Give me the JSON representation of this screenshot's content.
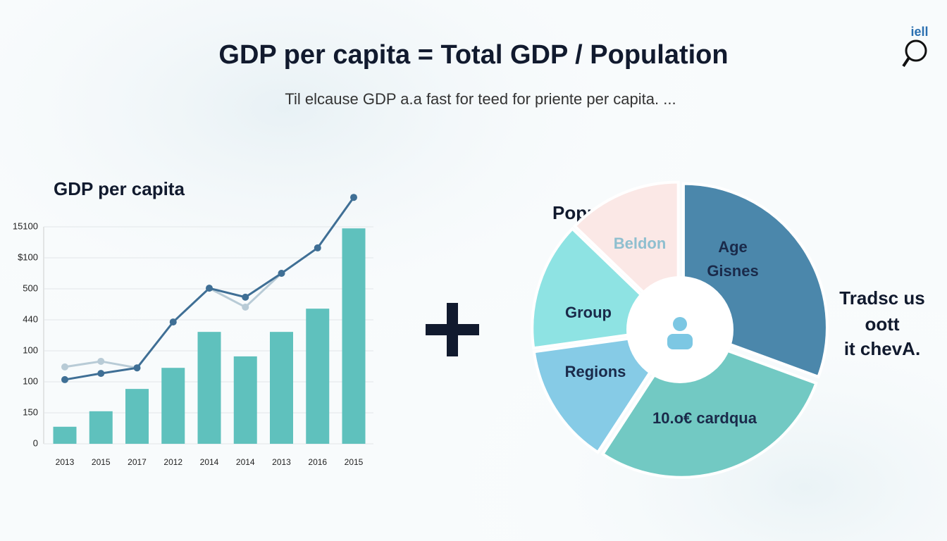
{
  "title": "GDP per capita = Total GDP / Population",
  "subtitle": "Til elcause GDP a.a fast for teed for priente per capita. ...",
  "logo": "iell",
  "note": [
    "Tradsc us",
    "oott",
    "it chevA."
  ],
  "chart_data": [
    {
      "type": "bar",
      "title": "GDP per capita",
      "categories": [
        "2013",
        "2015",
        "2017",
        "2012",
        "2014",
        "2014",
        "2013",
        "2016",
        "2015"
      ],
      "series": [
        {
          "type": "bar",
          "color": "#5fc1bd",
          "values": [
            0.55,
            1.05,
            1.77,
            2.45,
            3.61,
            2.82,
            3.61,
            4.36,
            6.95
          ]
        },
        {
          "type": "line",
          "color": "#b8cbd6",
          "values": [
            2.48,
            2.66,
            2.45,
            null,
            5.02,
            4.41,
            5.5,
            null,
            null
          ]
        },
        {
          "type": "line",
          "color": "#3f6f95",
          "values": [
            2.07,
            2.27,
            2.45,
            3.93,
            5.02,
            4.73,
            5.5,
            6.32,
            7.95
          ]
        }
      ],
      "ylim": [
        0,
        7
      ],
      "yticks": [
        0,
        {
          "value": 1,
          "label": "150"
        },
        {
          "value": 2,
          "label": "100"
        },
        {
          "value": 3,
          "label": "100"
        },
        {
          "value": 4,
          "label": "440"
        },
        {
          "value": 5,
          "label": "500"
        },
        {
          "value": 6,
          "label": "$100"
        },
        {
          "value": 7,
          "label": "15100"
        }
      ],
      "grid": true
    },
    {
      "type": "pie",
      "title": "Population",
      "categories": [
        "Age Gisnes",
        "10.o€ cardqua",
        "Regions",
        "Group",
        "Beldon"
      ],
      "values": [
        30.6,
        28.6,
        13.6,
        14.4,
        12.8
      ],
      "colors": [
        "#4b87ab",
        "#72c9c3",
        "#86cbe6",
        "#8ee3e3",
        "#fbe8e6"
      ]
    }
  ]
}
